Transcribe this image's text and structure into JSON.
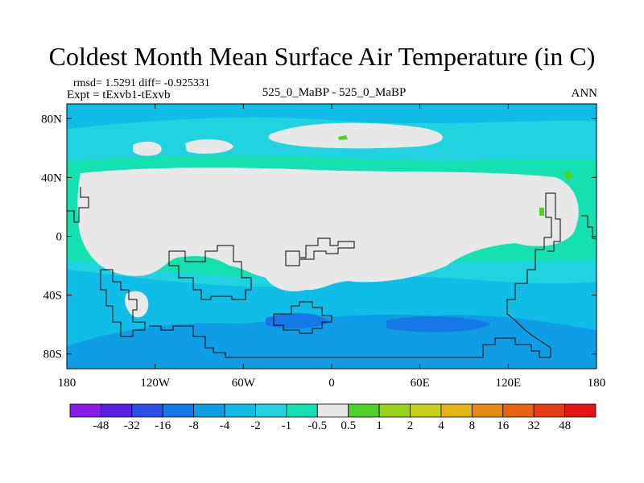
{
  "chart_data": {
    "type": "heatmap",
    "title": "Coldest Month Mean Surface Air Temperature (in C)",
    "stats_label": "rmsd= 1.5291  diff= -0.925331",
    "experiment_label": "Expt = tExvb1-tExvb",
    "comparison_label": "525_0_MaBP - 525_0_MaBP",
    "season_label": "ANN",
    "x_axis": {
      "range": [
        -180,
        180
      ],
      "ticks": [
        {
          "value": -180,
          "label": "180"
        },
        {
          "value": -120,
          "label": "120W"
        },
        {
          "value": -60,
          "label": "60W"
        },
        {
          "value": 0,
          "label": "0"
        },
        {
          "value": 60,
          "label": "60E"
        },
        {
          "value": 120,
          "label": "120E"
        },
        {
          "value": 180,
          "label": "180"
        }
      ]
    },
    "y_axis": {
      "range": [
        -90,
        90
      ],
      "ticks": [
        {
          "value": 80,
          "label": "80N"
        },
        {
          "value": 40,
          "label": "40N"
        },
        {
          "value": 0,
          "label": "0"
        },
        {
          "value": -40,
          "label": "40S"
        },
        {
          "value": -80,
          "label": "80S"
        }
      ]
    },
    "colorbar": {
      "labels": [
        "-48",
        "-32",
        "-16",
        "-8",
        "-4",
        "-2",
        "-1",
        "-0.5",
        "0.5",
        "1",
        "2",
        "4",
        "8",
        "16",
        "32",
        "48"
      ],
      "colors": [
        "#8a1be6",
        "#5a1ee6",
        "#2a4ee6",
        "#1678e6",
        "#0f9de6",
        "#10bde6",
        "#21d2e0",
        "#15e0b0",
        "#e8e8e8",
        "#4ed22b",
        "#9bd21e",
        "#c8d21a",
        "#e2b514",
        "#e68a14",
        "#e66414",
        "#e63c14",
        "#e61414"
      ]
    },
    "fields": [
      {
        "name": "near-zero core (-0.5 to 0.5)",
        "value_range": [
          -0.5,
          0.5
        ]
      },
      {
        "name": "southern ocean cold band",
        "value_range": [
          -4,
          -2
        ]
      },
      {
        "name": "southern ocean coldest patches",
        "value_range": [
          -8,
          -4
        ]
      },
      {
        "name": "isolated warm spots",
        "value_range": [
          0.5,
          1
        ]
      }
    ]
  }
}
